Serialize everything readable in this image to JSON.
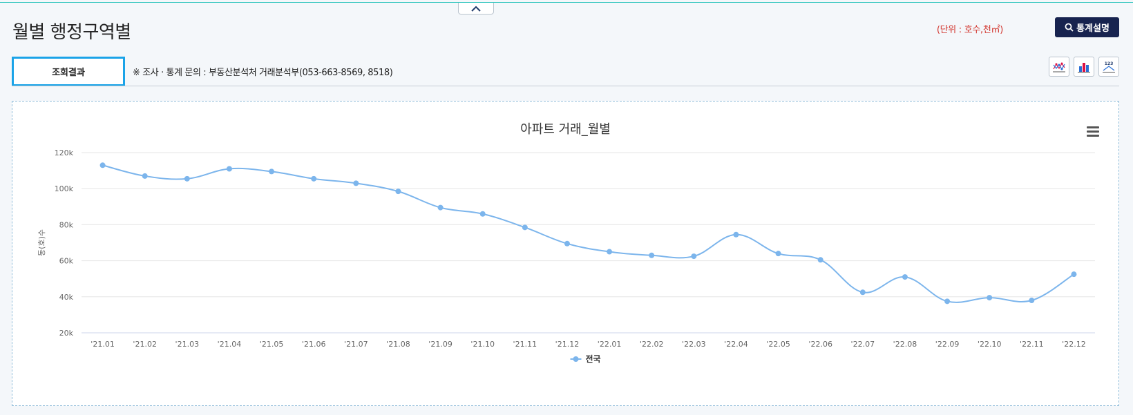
{
  "header": {
    "collapse_symbol": "⌃",
    "title": "월별 행정구역별",
    "unit": "(단위 : 호수,천㎡)",
    "stats_button": "통계설명"
  },
  "tabs": {
    "result": "조회결과",
    "inquiry": "※ 조사 · 통계 문의 : 부동산분석처 거래분석부(053-663-8569, 8518)"
  },
  "toolbar": {
    "icons": [
      "line-chart-icon",
      "bar-chart-icon",
      "data-table-icon"
    ]
  },
  "colors": {
    "series": "#7cb5ec",
    "accent": "#1aa3e8",
    "button_bg": "#17234f",
    "unit": "#d2342c"
  },
  "chart_data": {
    "type": "line",
    "title": "아파트 거래_월별",
    "xlabel": "",
    "ylabel": "동(호)수",
    "categories": [
      "'21.01",
      "'21.02",
      "'21.03",
      "'21.04",
      "'21.05",
      "'21.06",
      "'21.07",
      "'21.08",
      "'21.09",
      "'21.10",
      "'21.11",
      "'21.12",
      "'22.01",
      "'22.02",
      "'22.03",
      "'22.04",
      "'22.05",
      "'22.06",
      "'22.07",
      "'22.08",
      "'22.09",
      "'22.10",
      "'22.11",
      "'22.12"
    ],
    "series": [
      {
        "name": "전국",
        "values": [
          113000,
          107000,
          105500,
          111000,
          109500,
          105500,
          103000,
          98500,
          89500,
          86000,
          78500,
          69500,
          65000,
          63000,
          62500,
          74500,
          64000,
          60500,
          42500,
          51000,
          37500,
          39500,
          38000,
          52500
        ]
      }
    ],
    "yticks": [
      20000,
      40000,
      60000,
      80000,
      100000,
      120000
    ],
    "ytick_labels": [
      "20k",
      "40k",
      "60k",
      "80k",
      "100k",
      "120k"
    ],
    "ylim": [
      20000,
      120000
    ],
    "grid": true,
    "legend": "bottom-center"
  }
}
